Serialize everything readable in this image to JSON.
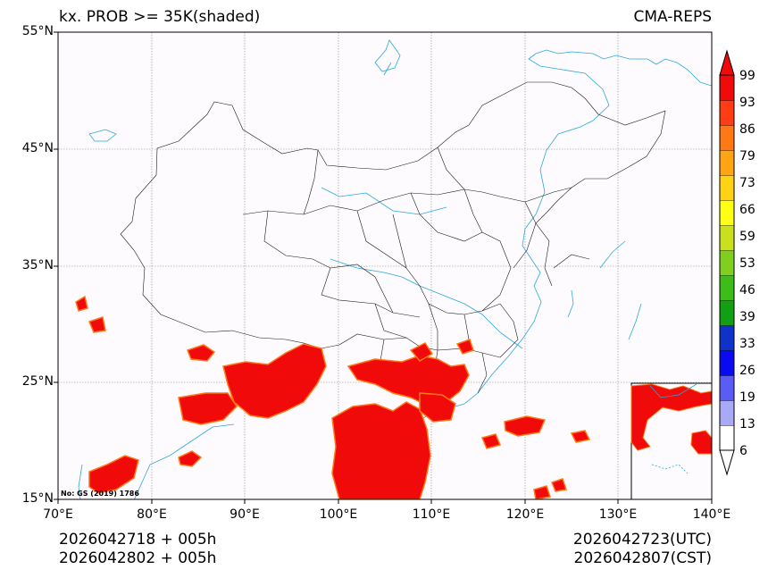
{
  "title": {
    "left": "kx. PROB >= 35K(shaded)",
    "right": "CMA-REPS"
  },
  "lat_ticks": [
    "55°N",
    "45°N",
    "35°N",
    "25°N",
    "15°N"
  ],
  "lon_ticks": [
    "70°E",
    "80°E",
    "90°E",
    "100°E",
    "110°E",
    "120°E",
    "130°E",
    "140°E"
  ],
  "lon_values": [
    70,
    80,
    90,
    100,
    110,
    120,
    130,
    140
  ],
  "lat_values": [
    55,
    45,
    35,
    25,
    15
  ],
  "map_note": "No: GS (2019) 1786",
  "colorbar": {
    "levels": [
      "6",
      "13",
      "19",
      "26",
      "33",
      "39",
      "46",
      "53",
      "59",
      "66",
      "73",
      "79",
      "86",
      "93",
      "99"
    ],
    "colors": [
      "#ffffff",
      "#a9a9f8",
      "#5b5bf5",
      "#0a0af0",
      "#1032c8",
      "#11a011",
      "#3cbd17",
      "#80cf1f",
      "#c8e11c",
      "#ffff14",
      "#ffd214",
      "#ffa514",
      "#ff7814",
      "#ff3c14",
      "#f00a0a"
    ]
  },
  "footer": {
    "left_line1": "2026042718  +  005h",
    "left_line2": "2026042802  +  005h",
    "right_line1": "2026042723(UTC)",
    "right_line2": "2026042807(CST)"
  }
}
